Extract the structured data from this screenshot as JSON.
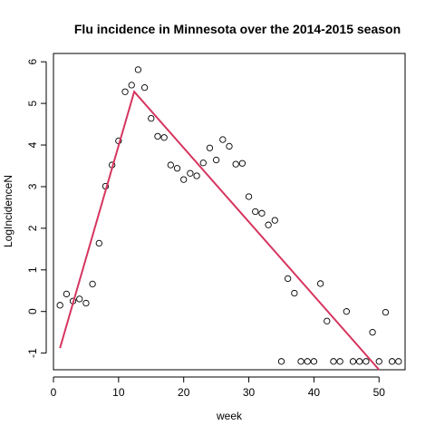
{
  "chart_data": {
    "type": "scatter",
    "title": "Flu incidence in Minnesota over the 2014-2015 season",
    "xlabel": "week",
    "ylabel": "LogIncidenceN",
    "xlim": [
      0,
      54
    ],
    "ylim": [
      -1.4,
      6.2
    ],
    "x_ticks": [
      0,
      10,
      20,
      30,
      40,
      50
    ],
    "y_ticks": [
      -1,
      0,
      1,
      2,
      3,
      4,
      5,
      6
    ],
    "grid": false,
    "points": [
      {
        "x": 1,
        "y": 0.15
      },
      {
        "x": 2,
        "y": 0.42
      },
      {
        "x": 3,
        "y": 0.25
      },
      {
        "x": 4,
        "y": 0.3
      },
      {
        "x": 5,
        "y": 0.2
      },
      {
        "x": 6,
        "y": 0.66
      },
      {
        "x": 7,
        "y": 1.64
      },
      {
        "x": 8,
        "y": 3.01
      },
      {
        "x": 9,
        "y": 3.52
      },
      {
        "x": 10,
        "y": 4.1
      },
      {
        "x": 11,
        "y": 5.28
      },
      {
        "x": 12,
        "y": 5.44
      },
      {
        "x": 13,
        "y": 5.81
      },
      {
        "x": 14,
        "y": 5.38
      },
      {
        "x": 15,
        "y": 4.64
      },
      {
        "x": 16,
        "y": 4.21
      },
      {
        "x": 17,
        "y": 4.18
      },
      {
        "x": 18,
        "y": 3.52
      },
      {
        "x": 19,
        "y": 3.44
      },
      {
        "x": 20,
        "y": 3.17
      },
      {
        "x": 21,
        "y": 3.32
      },
      {
        "x": 22,
        "y": 3.26
      },
      {
        "x": 23,
        "y": 3.57
      },
      {
        "x": 24,
        "y": 3.93
      },
      {
        "x": 25,
        "y": 3.64
      },
      {
        "x": 26,
        "y": 4.13
      },
      {
        "x": 27,
        "y": 3.97
      },
      {
        "x": 28,
        "y": 3.54
      },
      {
        "x": 29,
        "y": 3.56
      },
      {
        "x": 30,
        "y": 2.76
      },
      {
        "x": 31,
        "y": 2.4
      },
      {
        "x": 32,
        "y": 2.36
      },
      {
        "x": 33,
        "y": 2.08
      },
      {
        "x": 34,
        "y": 2.19
      },
      {
        "x": 35,
        "y": -1.2
      },
      {
        "x": 36,
        "y": 0.79
      },
      {
        "x": 37,
        "y": 0.44
      },
      {
        "x": 38,
        "y": -1.2
      },
      {
        "x": 39,
        "y": -1.2
      },
      {
        "x": 40,
        "y": -1.2
      },
      {
        "x": 41,
        "y": 0.67
      },
      {
        "x": 42,
        "y": -0.23
      },
      {
        "x": 43,
        "y": -1.2
      },
      {
        "x": 44,
        "y": -1.2
      },
      {
        "x": 45,
        "y": 0.0
      },
      {
        "x": 46,
        "y": -1.2
      },
      {
        "x": 47,
        "y": -1.2
      },
      {
        "x": 48,
        "y": -1.2
      },
      {
        "x": 49,
        "y": -0.5
      },
      {
        "x": 50,
        "y": -1.2
      },
      {
        "x": 51,
        "y": -0.02
      },
      {
        "x": 52,
        "y": -1.2
      },
      {
        "x": 53,
        "y": -1.2
      }
    ],
    "fit_line": {
      "color": "#d6355f",
      "points": [
        {
          "x": 1,
          "y": -0.88
        },
        {
          "x": 12.4,
          "y": 5.28
        },
        {
          "x": 50,
          "y": -1.4
        }
      ]
    }
  }
}
